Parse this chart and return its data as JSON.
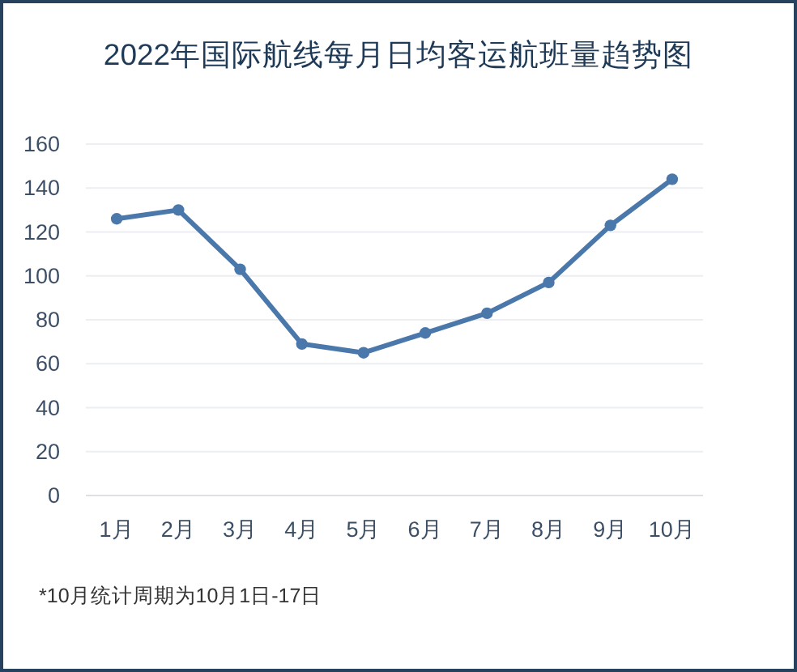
{
  "chart_data": {
    "type": "line",
    "title": "2022年国际航线每月日均客运航班量趋势图",
    "categories": [
      "1月",
      "2月",
      "3月",
      "4月",
      "5月",
      "6月",
      "7月",
      "8月",
      "9月",
      "10月"
    ],
    "series": [
      {
        "color": "#4a78ab",
        "values": [
          126,
          130,
          103,
          69,
          65,
          74,
          83,
          97,
          123,
          144
        ]
      }
    ],
    "ylim": [
      0,
      160
    ],
    "yticks": [
      0,
      20,
      40,
      60,
      80,
      100,
      120,
      140,
      160
    ],
    "grid": "y",
    "marker": "circle",
    "line_style": "solid",
    "annotations": [
      "*10月统计周期为10月1日-17日"
    ]
  }
}
